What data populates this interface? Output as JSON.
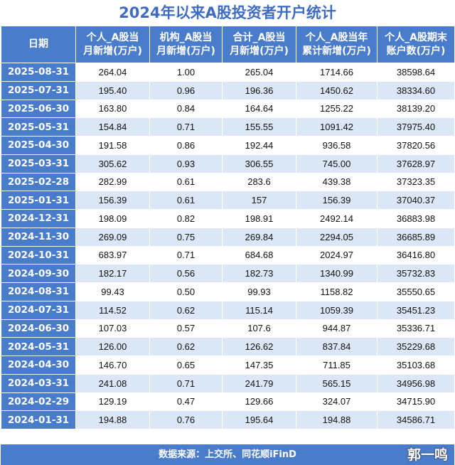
{
  "title": "2024年以来A股投资者开户统计",
  "headers": [
    [
      "日期"
    ],
    [
      "个人_A股当",
      "月新增(万户)"
    ],
    [
      "机构_A股当",
      "月新增(万户)"
    ],
    [
      "合计_A股当",
      "月新增(万户)"
    ],
    [
      "个人_A股当年",
      "累计新增(万户)"
    ],
    [
      "个人_A股期末",
      "账户数(万户)"
    ]
  ],
  "rows": [
    [
      "2025-08-31",
      "264.04",
      "1.00",
      "265.04",
      "1714.66",
      "38598.64"
    ],
    [
      "2025-07-31",
      "195.40",
      "0.96",
      "196.36",
      "1450.62",
      "38334.60"
    ],
    [
      "2025-06-30",
      "163.80",
      "0.84",
      "164.64",
      "1255.22",
      "38139.20"
    ],
    [
      "2025-05-31",
      "154.84",
      "0.71",
      "155.55",
      "1091.42",
      "37975.40"
    ],
    [
      "2025-04-30",
      "191.58",
      "0.86",
      "192.44",
      "936.58",
      "37820.56"
    ],
    [
      "2025-03-31",
      "305.62",
      "0.93",
      "306.55",
      "745.00",
      "37628.97"
    ],
    [
      "2025-02-28",
      "282.99",
      "0.61",
      "283.6",
      "439.38",
      "37323.35"
    ],
    [
      "2025-01-31",
      "156.39",
      "0.61",
      "157",
      "156.39",
      "37040.37"
    ],
    [
      "2024-12-31",
      "198.09",
      "0.82",
      "198.91",
      "2492.14",
      "36883.98"
    ],
    [
      "2024-11-30",
      "269.09",
      "0.75",
      "269.84",
      "2294.05",
      "36685.89"
    ],
    [
      "2024-10-31",
      "683.97",
      "0.71",
      "684.68",
      "2024.97",
      "36416.80"
    ],
    [
      "2024-09-30",
      "182.17",
      "0.56",
      "182.73",
      "1340.99",
      "35732.83"
    ],
    [
      "2024-08-31",
      "99.43",
      "0.50",
      "99.93",
      "1158.82",
      "35550.65"
    ],
    [
      "2024-07-31",
      "114.52",
      "0.62",
      "115.14",
      "1059.39",
      "35451.23"
    ],
    [
      "2024-06-30",
      "107.03",
      "0.57",
      "107.6",
      "944.87",
      "35336.71"
    ],
    [
      "2024-05-31",
      "126.00",
      "0.62",
      "126.62",
      "837.84",
      "35229.68"
    ],
    [
      "2024-04-30",
      "146.70",
      "0.65",
      "147.35",
      "711.85",
      "35103.68"
    ],
    [
      "2024-03-31",
      "241.08",
      "0.71",
      "241.79",
      "565.15",
      "34956.98"
    ],
    [
      "2024-02-29",
      "129.19",
      "0.47",
      "129.66",
      "324.07",
      "34715.90"
    ],
    [
      "2024-01-31",
      "194.88",
      "0.76",
      "195.64",
      "194.88",
      "34586.71"
    ]
  ],
  "footer": "数据来源：上交所、同花顺iFinD",
  "watermark": "郭一鸣",
  "colors": {
    "header_bg": "#4a7ccc",
    "title": "#3f6cc2",
    "stripe": "#dbe6f6"
  }
}
